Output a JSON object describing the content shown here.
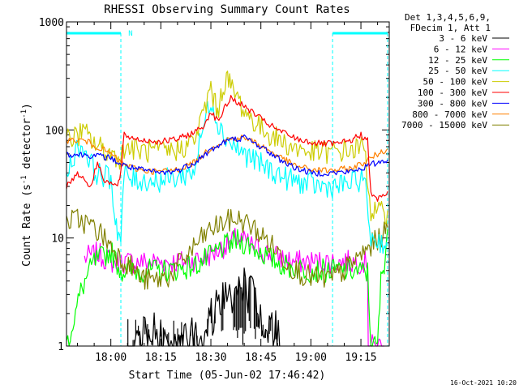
{
  "chart_data": {
    "type": "line",
    "title": "RHESSI Observing Summary Count Rates",
    "xlabel": "Start Time (05-Jun-02 17:46:42)",
    "ylabel_parts": [
      "Count Rate (s",
      "-1",
      " detector",
      "-1",
      ")"
    ],
    "ylabel": "Count Rate (s-1 detector-1)",
    "yscale": "log",
    "ylim": [
      1,
      1000
    ],
    "y_ticks": [
      {
        "value": 1,
        "label": "1"
      },
      {
        "value": 10,
        "label": "10"
      },
      {
        "value": 100,
        "label": "100"
      },
      {
        "value": 1000,
        "label": "1000"
      }
    ],
    "xlim_minutes": [
      -13.3,
      83.5
    ],
    "x_ticks": [
      {
        "minutes": 0,
        "label": "18:00"
      },
      {
        "minutes": 15,
        "label": "18:15"
      },
      {
        "minutes": 30,
        "label": "18:30"
      },
      {
        "minutes": 45,
        "label": "18:45"
      },
      {
        "minutes": 60,
        "label": "19:00"
      },
      {
        "minutes": 75,
        "label": "19:15"
      }
    ],
    "legend_header": [
      "Det 1,3,4,5,6,9,",
      "FDecim 1, Att 1"
    ],
    "legend_position": "outside-right",
    "footer_date": "16-Oct-2021 10:20",
    "night_marker_label": "N",
    "night_intervals": [
      [
        -13.3,
        3.0
      ],
      [
        66.5,
        83.0
      ]
    ],
    "series": [
      {
        "name": "3 - 6 keV",
        "color": "#000000",
        "points": [
          [
            -13.3,
            null
          ],
          [
            5.0,
            null
          ],
          [
            5.1,
            1.0
          ],
          [
            13,
            1.3
          ],
          [
            22,
            1.0
          ],
          [
            29,
            1.6
          ],
          [
            32,
            2.6
          ],
          [
            36,
            3.2
          ],
          [
            38,
            4.2
          ],
          [
            40,
            3.6
          ],
          [
            43,
            2.5
          ],
          [
            46,
            1.8
          ],
          [
            51,
            1.2
          ],
          [
            53,
            null
          ],
          [
            83.5,
            null
          ]
        ]
      },
      {
        "name": "6 - 12 keV",
        "color": "#ff00ff",
        "points": [
          [
            -13.3,
            null
          ],
          [
            -8,
            null
          ],
          [
            -7.9,
            6.5
          ],
          [
            -4,
            7.2
          ],
          [
            0,
            6.0
          ],
          [
            2.9,
            6.0
          ],
          [
            3.0,
            null
          ],
          [
            3.1,
            6.0
          ],
          [
            12,
            6.0
          ],
          [
            22,
            6.0
          ],
          [
            28,
            6.5
          ],
          [
            33,
            8.0
          ],
          [
            38,
            10.0
          ],
          [
            43,
            8.2
          ],
          [
            48,
            7.0
          ],
          [
            55,
            6.0
          ],
          [
            65,
            6.0
          ],
          [
            70,
            6.0
          ],
          [
            77,
            6.0
          ],
          [
            77.2,
            1.0
          ],
          [
            82,
            1.0
          ]
        ]
      },
      {
        "name": "12 - 25 keV",
        "color": "#00ff00",
        "points": [
          [
            -13.3,
            1.0
          ],
          [
            -11,
            1.8
          ],
          [
            -9,
            3.2
          ],
          [
            -7,
            4.5
          ],
          [
            -5,
            6.0
          ],
          [
            0,
            7.5
          ],
          [
            3,
            5.0
          ],
          [
            8,
            5.0
          ],
          [
            18,
            5.0
          ],
          [
            25,
            5.5
          ],
          [
            29,
            6.5
          ],
          [
            33,
            8.0
          ],
          [
            38,
            9.5
          ],
          [
            42,
            8.5
          ],
          [
            46,
            7.0
          ],
          [
            52,
            5.5
          ],
          [
            60,
            5.0
          ],
          [
            68,
            5.0
          ],
          [
            72,
            5.0
          ],
          [
            76,
            4.8
          ],
          [
            77,
            4.8
          ],
          [
            78,
            1.0
          ],
          [
            80,
            1.0
          ],
          [
            81,
            4.0
          ],
          [
            82,
            6.0
          ],
          [
            83,
            12.0
          ]
        ]
      },
      {
        "name": "25 - 50 keV",
        "color": "#00ffff",
        "points": [
          [
            -13.3,
            40
          ],
          [
            -11,
            60
          ],
          [
            -9,
            72
          ],
          [
            -7,
            60
          ],
          [
            -5,
            42
          ],
          [
            -3,
            38
          ],
          [
            0,
            36
          ],
          [
            1,
            18
          ],
          [
            2,
            12
          ],
          [
            3,
            9.5
          ],
          [
            4,
            40
          ],
          [
            6,
            35
          ],
          [
            10,
            34
          ],
          [
            15,
            34
          ],
          [
            20,
            36
          ],
          [
            25,
            42
          ],
          [
            27,
            85
          ],
          [
            29,
            150
          ],
          [
            30,
            200
          ],
          [
            31,
            150
          ],
          [
            33,
            100
          ],
          [
            36,
            75
          ],
          [
            40,
            60
          ],
          [
            45,
            48
          ],
          [
            52,
            36
          ],
          [
            58,
            32
          ],
          [
            63,
            30
          ],
          [
            68,
            30
          ],
          [
            72,
            32
          ],
          [
            76,
            36
          ],
          [
            78,
            10
          ],
          [
            80,
            9.5
          ],
          [
            82,
            9.0
          ],
          [
            83,
            9.0
          ]
        ]
      },
      {
        "name": "50 - 100 keV",
        "color": "#cccc00",
        "points": [
          [
            -13.3,
            80
          ],
          [
            -10,
            90
          ],
          [
            -8,
            95
          ],
          [
            -5,
            75
          ],
          [
            -2,
            65
          ],
          [
            0,
            60
          ],
          [
            3,
            55
          ],
          [
            4,
            70
          ],
          [
            8,
            65
          ],
          [
            15,
            62
          ],
          [
            20,
            65
          ],
          [
            25,
            80
          ],
          [
            27,
            120
          ],
          [
            29,
            190
          ],
          [
            30,
            260
          ],
          [
            31,
            180
          ],
          [
            32,
            150
          ],
          [
            33,
            200
          ],
          [
            34,
            270
          ],
          [
            35,
            300
          ],
          [
            36,
            250
          ],
          [
            38,
            200
          ],
          [
            40,
            150
          ],
          [
            44,
            110
          ],
          [
            48,
            90
          ],
          [
            54,
            70
          ],
          [
            60,
            62
          ],
          [
            66,
            62
          ],
          [
            72,
            65
          ],
          [
            76,
            70
          ],
          [
            78,
            18
          ],
          [
            80,
            17
          ],
          [
            82,
            17
          ],
          [
            83,
            18
          ]
        ]
      },
      {
        "name": "100 - 300 keV",
        "color": "#ff0000",
        "points": [
          [
            -13.3,
            30
          ],
          [
            -10,
            40
          ],
          [
            -8,
            35
          ],
          [
            -6,
            30
          ],
          [
            -4,
            50
          ],
          [
            -2,
            35
          ],
          [
            0,
            32
          ],
          [
            2,
            30
          ],
          [
            3,
            40
          ],
          [
            4,
            90
          ],
          [
            6,
            85
          ],
          [
            10,
            80
          ],
          [
            15,
            78
          ],
          [
            20,
            82
          ],
          [
            25,
            95
          ],
          [
            28,
            110
          ],
          [
            30,
            150
          ],
          [
            32,
            120
          ],
          [
            34,
            155
          ],
          [
            36,
            200
          ],
          [
            38,
            180
          ],
          [
            42,
            150
          ],
          [
            46,
            120
          ],
          [
            50,
            100
          ],
          [
            56,
            82
          ],
          [
            62,
            75
          ],
          [
            68,
            74
          ],
          [
            72,
            80
          ],
          [
            75,
            90
          ],
          [
            77,
            80
          ],
          [
            78,
            25
          ],
          [
            80,
            23
          ],
          [
            82,
            25
          ],
          [
            83,
            27
          ]
        ]
      },
      {
        "name": "300 - 800 keV",
        "color": "#0000ff",
        "points": [
          [
            -13.3,
            60
          ],
          [
            -5,
            58
          ],
          [
            0,
            55
          ],
          [
            3,
            48
          ],
          [
            6,
            45
          ],
          [
            10,
            42
          ],
          [
            15,
            40
          ],
          [
            20,
            42
          ],
          [
            25,
            50
          ],
          [
            30,
            65
          ],
          [
            35,
            80
          ],
          [
            40,
            85
          ],
          [
            45,
            70
          ],
          [
            50,
            55
          ],
          [
            55,
            45
          ],
          [
            60,
            40
          ],
          [
            66,
            40
          ],
          [
            72,
            41
          ],
          [
            76,
            45
          ],
          [
            80,
            50
          ],
          [
            83,
            53
          ]
        ]
      },
      {
        "name": "800 - 7000 keV",
        "color": "#ff8000",
        "points": [
          [
            -13.3,
            80
          ],
          [
            -8,
            80
          ],
          [
            -4,
            70
          ],
          [
            0,
            60
          ],
          [
            3,
            50
          ],
          [
            6,
            45
          ],
          [
            10,
            42
          ],
          [
            15,
            41
          ],
          [
            20,
            43
          ],
          [
            25,
            50
          ],
          [
            30,
            68
          ],
          [
            35,
            82
          ],
          [
            40,
            85
          ],
          [
            45,
            72
          ],
          [
            50,
            58
          ],
          [
            55,
            47
          ],
          [
            60,
            43
          ],
          [
            66,
            42
          ],
          [
            72,
            44
          ],
          [
            76,
            50
          ],
          [
            80,
            60
          ],
          [
            83,
            67
          ]
        ]
      },
      {
        "name": "7000 - 15000 keV",
        "color": "#808000",
        "points": [
          [
            -13.3,
            14
          ],
          [
            -10,
            15
          ],
          [
            -6,
            13
          ],
          [
            -3,
            11
          ],
          [
            0,
            8.5
          ],
          [
            3,
            6.5
          ],
          [
            6,
            5.5
          ],
          [
            9,
            4.2
          ],
          [
            13,
            4.0
          ],
          [
            18,
            4.5
          ],
          [
            22,
            6.5
          ],
          [
            26,
            9.0
          ],
          [
            30,
            12
          ],
          [
            34,
            14
          ],
          [
            38,
            15
          ],
          [
            42,
            13
          ],
          [
            46,
            10
          ],
          [
            50,
            7.5
          ],
          [
            54,
            5.5
          ],
          [
            58,
            4.5
          ],
          [
            62,
            4.2
          ],
          [
            66,
            4.2
          ],
          [
            70,
            5.0
          ],
          [
            74,
            6.5
          ],
          [
            78,
            8.5
          ],
          [
            82,
            11
          ],
          [
            83,
            12.5
          ]
        ]
      }
    ]
  }
}
